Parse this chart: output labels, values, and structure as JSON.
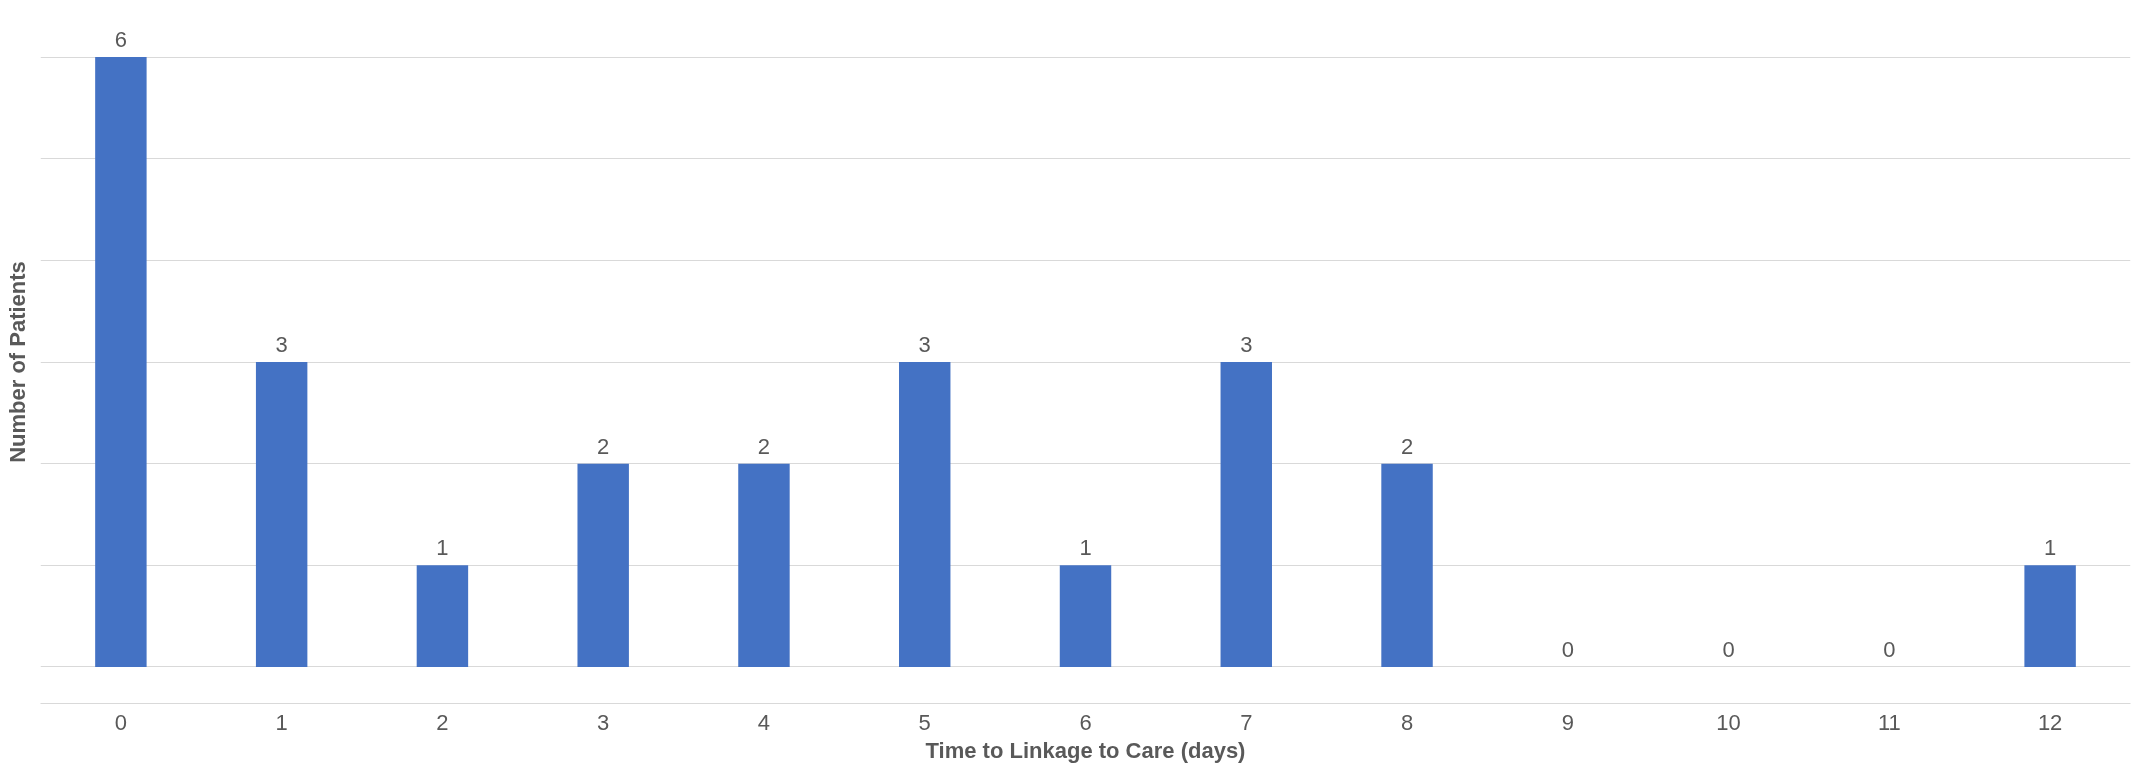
{
  "chart_data": {
    "type": "bar",
    "xlabel": "Time to Linkage to Care (days)",
    "ylabel": "Number of Patients",
    "categories": [
      "0",
      "1",
      "2",
      "3",
      "4",
      "5",
      "6",
      "7",
      "8",
      "9",
      "10",
      "11",
      "12"
    ],
    "values": [
      6,
      3,
      1,
      2,
      2,
      3,
      1,
      3,
      2,
      0,
      0,
      0,
      1
    ],
    "color": "#4472c4",
    "data_labels": true,
    "grid": "y",
    "tick_labels": "x"
  }
}
